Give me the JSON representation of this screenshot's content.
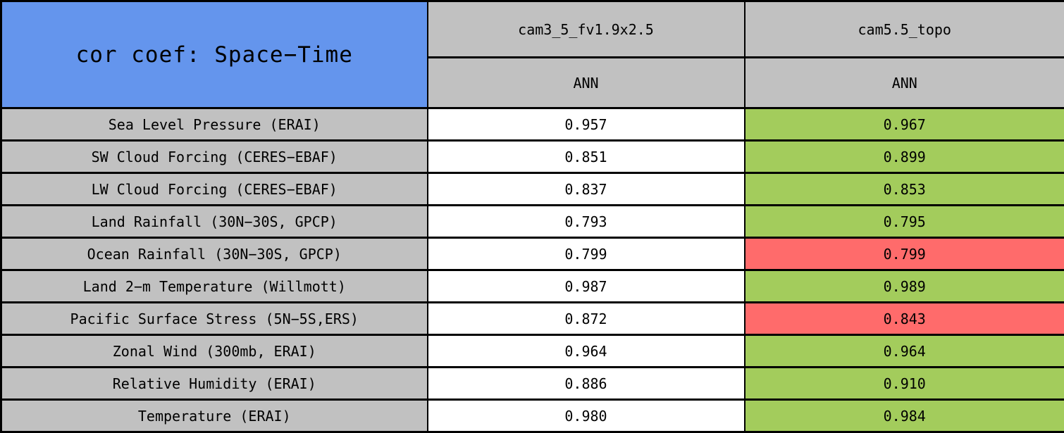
{
  "title": "cor coef: Space−Time",
  "header": {
    "models": [
      "cam3_5_fv1.9x2.5",
      "cam5.5_topo"
    ],
    "seasons": [
      "ANN",
      "ANN"
    ]
  },
  "rows": [
    {
      "label": "Sea Level Pressure (ERAI)",
      "cells": [
        {
          "text": "0.957",
          "state": "neutral"
        },
        {
          "text": "0.967",
          "state": "better"
        }
      ]
    },
    {
      "label": "SW Cloud Forcing (CERES−EBAF)",
      "cells": [
        {
          "text": "0.851",
          "state": "neutral"
        },
        {
          "text": "0.899",
          "state": "better"
        }
      ]
    },
    {
      "label": "LW Cloud Forcing (CERES−EBAF)",
      "cells": [
        {
          "text": "0.837",
          "state": "neutral"
        },
        {
          "text": "0.853",
          "state": "better"
        }
      ]
    },
    {
      "label": "Land Rainfall (30N−30S, GPCP)",
      "cells": [
        {
          "text": "0.793",
          "state": "neutral"
        },
        {
          "text": "0.795",
          "state": "better"
        }
      ]
    },
    {
      "label": "Ocean Rainfall (30N−30S, GPCP)",
      "cells": [
        {
          "text": "0.799",
          "state": "neutral"
        },
        {
          "text": "0.799",
          "state": "worse"
        }
      ]
    },
    {
      "label": "Land 2−m Temperature (Willmott)",
      "cells": [
        {
          "text": "0.987",
          "state": "neutral"
        },
        {
          "text": "0.989",
          "state": "better"
        }
      ]
    },
    {
      "label": "Pacific Surface Stress (5N−5S,ERS)",
      "cells": [
        {
          "text": "0.872",
          "state": "neutral"
        },
        {
          "text": "0.843",
          "state": "worse"
        }
      ]
    },
    {
      "label": "Zonal Wind (300mb, ERAI)",
      "cells": [
        {
          "text": "0.964",
          "state": "neutral"
        },
        {
          "text": "0.964",
          "state": "better"
        }
      ]
    },
    {
      "label": "Relative Humidity (ERAI)",
      "cells": [
        {
          "text": "0.886",
          "state": "neutral"
        },
        {
          "text": "0.910",
          "state": "better"
        }
      ]
    },
    {
      "label": "Temperature (ERAI)",
      "cells": [
        {
          "text": "0.980",
          "state": "neutral"
        },
        {
          "text": "0.984",
          "state": "better"
        }
      ]
    }
  ],
  "colors": {
    "title_bg": "#6495ED",
    "header_bg": "#C1C1C1",
    "value_bg": "#FFFFFF",
    "better_bg": "#A3CC5C",
    "worse_bg": "#FF6B6B",
    "border_color": "#000000",
    "text_color": "#000000"
  },
  "chart_data": {
    "type": "table",
    "title": "cor coef: Space−Time",
    "row_labels": [
      "Sea Level Pressure (ERAI)",
      "SW Cloud Forcing (CERES−EBAF)",
      "LW Cloud Forcing (CERES−EBAF)",
      "Land Rainfall (30N−30S, GPCP)",
      "Ocean Rainfall (30N−30S, GPCP)",
      "Land 2−m Temperature (Willmott)",
      "Pacific Surface Stress (5N−5S,ERS)",
      "Zonal Wind (300mb, ERAI)",
      "Relative Humidity (ERAI)",
      "Temperature (ERAI)"
    ],
    "series": [
      {
        "name": "cam3_5_fv1.9x2.5",
        "season": "ANN",
        "values": [
          0.957,
          0.851,
          0.837,
          0.793,
          0.799,
          0.987,
          0.872,
          0.964,
          0.886,
          0.98
        ],
        "cell_highlight": [
          "none",
          "none",
          "none",
          "none",
          "none",
          "none",
          "none",
          "none",
          "none",
          "none"
        ]
      },
      {
        "name": "cam5.5_topo",
        "season": "ANN",
        "values": [
          0.967,
          0.899,
          0.853,
          0.795,
          0.799,
          0.989,
          0.843,
          0.964,
          0.91,
          0.984
        ],
        "cell_highlight": [
          "green",
          "green",
          "green",
          "green",
          "red",
          "green",
          "red",
          "green",
          "green",
          "green"
        ]
      }
    ]
  }
}
